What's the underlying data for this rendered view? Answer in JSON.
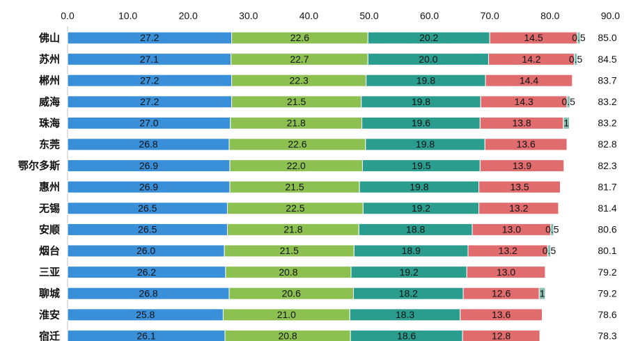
{
  "chart_data": {
    "type": "bar",
    "orientation": "horizontal",
    "stacked": true,
    "title": "",
    "xlabel": "",
    "ylabel": "",
    "xlim": [
      0,
      90
    ],
    "x_ticks": [
      "0.0",
      "10.0",
      "20.0",
      "30.0",
      "40.0",
      "50.0",
      "60.0",
      "70.0",
      "80.0",
      "90.0"
    ],
    "x_axis_position": "top",
    "grid": false,
    "legend": "none",
    "categories": [
      "佛山",
      "苏州",
      "郴州",
      "威海",
      "珠海",
      "东莞",
      "鄂尔多斯",
      "惠州",
      "无锡",
      "安顺",
      "烟台",
      "三亚",
      "聊城",
      "淮安",
      "宿迁"
    ],
    "series": [
      {
        "color": "#3a8fd9",
        "values": [
          27.2,
          27.1,
          27.2,
          27.2,
          27.0,
          26.8,
          26.9,
          26.9,
          26.5,
          26.5,
          26.0,
          26.2,
          26.8,
          25.8,
          26.1
        ],
        "labels": [
          "27.2",
          "27.1",
          "27.2",
          "27.2",
          "27.0",
          "26.8",
          "26.9",
          "26.9",
          "26.5",
          "26.5",
          "26.0",
          "26.2",
          "26.8",
          "25.8",
          "26.1"
        ]
      },
      {
        "color": "#8cc152",
        "values": [
          22.6,
          22.7,
          22.3,
          21.5,
          21.8,
          22.6,
          22.0,
          21.5,
          22.5,
          21.8,
          21.5,
          20.8,
          20.6,
          21.0,
          20.8
        ],
        "labels": [
          "22.6",
          "22.7",
          "22.3",
          "21.5",
          "21.8",
          "22.6",
          "22.0",
          "21.5",
          "22.5",
          "21.8",
          "21.5",
          "20.8",
          "20.6",
          "21.0",
          "20.8"
        ]
      },
      {
        "color": "#2a9d8f",
        "values": [
          20.2,
          20.0,
          19.8,
          19.8,
          19.6,
          19.8,
          19.5,
          19.8,
          19.2,
          18.8,
          18.9,
          19.2,
          18.2,
          18.3,
          18.6
        ],
        "labels": [
          "20.2",
          "20.0",
          "19.8",
          "19.8",
          "19.6",
          "19.8",
          "19.5",
          "19.8",
          "19.2",
          "18.8",
          "18.9",
          "19.2",
          "18.2",
          "18.3",
          "18.6"
        ]
      },
      {
        "color": "#e06c6e",
        "values": [
          14.5,
          14.2,
          14.4,
          14.3,
          13.8,
          13.6,
          13.9,
          13.5,
          13.2,
          13.0,
          13.2,
          13.0,
          12.6,
          13.6,
          12.8
        ],
        "labels": [
          "14.5",
          "14.2",
          "14.4",
          "14.3",
          "13.8",
          "13.6",
          "13.9",
          "13.5",
          "13.2",
          "13.0",
          "13.2",
          "13.0",
          "12.6",
          "13.6",
          "12.8"
        ]
      },
      {
        "color": "#86bfb4",
        "values": [
          0.5,
          0.5,
          0,
          0.5,
          1,
          0,
          0,
          0,
          0,
          0.5,
          0.5,
          0,
          1,
          0,
          0
        ],
        "labels": [
          "0.5",
          "0.5",
          "",
          "0.5",
          "1",
          "",
          "",
          "",
          "",
          "0.5",
          "0.5",
          "",
          "1",
          "",
          ""
        ]
      }
    ],
    "totals": [
      "85.0",
      "84.5",
      "83.7",
      "83.2",
      "83.2",
      "82.8",
      "82.3",
      "81.7",
      "81.4",
      "80.6",
      "80.1",
      "79.2",
      "79.2",
      "78.6",
      "78.3"
    ],
    "text_color": "#111111",
    "axis_color": "#bfbfbf"
  }
}
